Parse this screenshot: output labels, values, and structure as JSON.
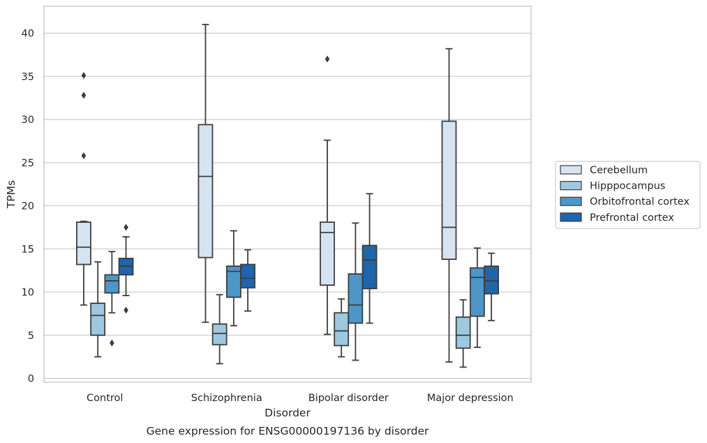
{
  "chart_data": {
    "type": "box",
    "caption": "Gene expression for ENSG00000197136 by disorder",
    "xlabel": "Disorder",
    "ylabel": "TPMs",
    "ylim": [
      -0.5,
      43
    ],
    "yticks": [
      0,
      5,
      10,
      15,
      20,
      25,
      30,
      35,
      40
    ],
    "grid": "horizontal",
    "legend_position": "right",
    "categories": [
      "Control",
      "Schizophrenia",
      "Bipolar disorder",
      "Major depression"
    ],
    "series": [
      {
        "name": "Cerebellum",
        "color": "#d6e4f2",
        "boxes": [
          {
            "whislo": 8.5,
            "q1": 13.2,
            "med": 15.2,
            "q3": 18.1,
            "whishi": 18.2,
            "fliers": [
              25.8,
              32.8,
              35.1
            ]
          },
          {
            "whislo": 6.5,
            "q1": 14.0,
            "med": 23.4,
            "q3": 29.4,
            "whishi": 41.0,
            "fliers": []
          },
          {
            "whislo": 5.1,
            "q1": 10.8,
            "med": 16.9,
            "q3": 18.1,
            "whishi": 27.6,
            "fliers": [
              37.0
            ]
          },
          {
            "whislo": 1.9,
            "q1": 13.8,
            "med": 17.5,
            "q3": 29.8,
            "whishi": 38.2,
            "fliers": []
          }
        ]
      },
      {
        "name": "Hipppocampus",
        "color": "#9ec8e0",
        "boxes": [
          {
            "whislo": 2.5,
            "q1": 5.0,
            "med": 7.3,
            "q3": 8.7,
            "whishi": 13.5,
            "fliers": []
          },
          {
            "whislo": 1.7,
            "q1": 3.9,
            "med": 5.2,
            "q3": 6.3,
            "whishi": 9.7,
            "fliers": []
          },
          {
            "whislo": 2.5,
            "q1": 3.8,
            "med": 5.5,
            "q3": 7.6,
            "whishi": 9.2,
            "fliers": []
          },
          {
            "whislo": 1.3,
            "q1": 3.5,
            "med": 5.0,
            "q3": 7.1,
            "whishi": 9.1,
            "fliers": []
          }
        ]
      },
      {
        "name": "Orbitofrontal cortex",
        "color": "#4d96c7",
        "boxes": [
          {
            "whislo": 7.6,
            "q1": 9.9,
            "med": 11.3,
            "q3": 12.0,
            "whishi": 14.7,
            "fliers": [
              4.1
            ]
          },
          {
            "whislo": 6.1,
            "q1": 9.4,
            "med": 12.4,
            "q3": 13.0,
            "whishi": 17.1,
            "fliers": []
          },
          {
            "whislo": 2.1,
            "q1": 6.4,
            "med": 8.5,
            "q3": 12.1,
            "whishi": 18.0,
            "fliers": []
          },
          {
            "whislo": 3.6,
            "q1": 7.2,
            "med": 11.7,
            "q3": 12.8,
            "whishi": 15.1,
            "fliers": []
          }
        ]
      },
      {
        "name": "Prefrontal cortex",
        "color": "#1f65a9",
        "boxes": [
          {
            "whislo": 9.6,
            "q1": 12.0,
            "med": 13.0,
            "q3": 13.9,
            "whishi": 16.4,
            "fliers": [
              7.9,
              17.5
            ]
          },
          {
            "whislo": 7.8,
            "q1": 10.5,
            "med": 11.6,
            "q3": 13.2,
            "whishi": 14.9,
            "fliers": []
          },
          {
            "whislo": 6.4,
            "q1": 10.4,
            "med": 13.7,
            "q3": 15.4,
            "whishi": 21.4,
            "fliers": []
          },
          {
            "whislo": 6.7,
            "q1": 9.8,
            "med": 11.3,
            "q3": 13.0,
            "whishi": 14.5,
            "fliers": []
          }
        ]
      }
    ]
  }
}
